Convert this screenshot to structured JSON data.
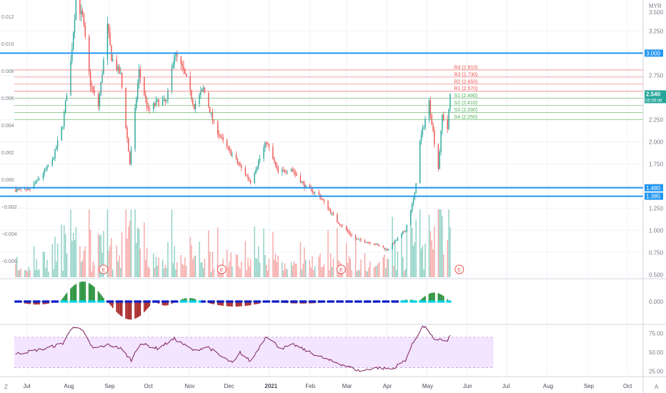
{
  "currency_label": "MYR",
  "overlay_left_axis": {
    "ticks": [
      0.012,
      0.01,
      0.008,
      0.006,
      0.004,
      0.002,
      0.0,
      -0.002,
      -0.004,
      -0.006
    ],
    "labels": [
      "0.012",
      "0.010",
      "0.008",
      "0.006",
      "0.004",
      "0.002",
      "0.000",
      "−0.002",
      "−0.004",
      "−0.006"
    ],
    "range": [
      -0.0072,
      0.0132
    ]
  },
  "chart_data": [
    {
      "type": "candlestick",
      "price_range": [
        0.47,
        3.6
      ],
      "price_ticks": [
        3.25,
        3.0,
        2.75,
        2.5,
        2.25,
        2.0,
        1.75,
        1.5,
        1.25,
        1.0,
        0.75,
        0.5
      ],
      "price_tick_labels": [
        "3.250",
        "3.000",
        "2.750",
        "2.500",
        "2.250",
        "2.000",
        "1.750",
        "1.500",
        "1.250",
        "1.000",
        "0.750",
        "0.500"
      ],
      "top_tick_label": "3.500",
      "anchors": [
        {
          "date": "2020-06-22",
          "close": 1.46
        },
        {
          "date": "2020-07-01",
          "close": 1.44
        },
        {
          "date": "2020-07-08",
          "close": 1.55
        },
        {
          "date": "2020-07-20",
          "close": 1.78
        },
        {
          "date": "2020-07-28",
          "close": 2.2
        },
        {
          "date": "2020-08-03",
          "close": 2.9
        },
        {
          "date": "2020-08-07",
          "close": 3.6
        },
        {
          "date": "2020-08-12",
          "close": 3.4
        },
        {
          "date": "2020-08-18",
          "close": 2.65
        },
        {
          "date": "2020-08-24",
          "close": 2.4
        },
        {
          "date": "2020-08-31",
          "close": 3.3
        },
        {
          "date": "2020-09-03",
          "close": 2.95
        },
        {
          "date": "2020-09-10",
          "close": 2.75
        },
        {
          "date": "2020-09-17",
          "close": 1.75
        },
        {
          "date": "2020-09-24",
          "close": 2.8
        },
        {
          "date": "2020-10-01",
          "close": 2.35
        },
        {
          "date": "2020-10-08",
          "close": 2.45
        },
        {
          "date": "2020-10-15",
          "close": 2.45
        },
        {
          "date": "2020-10-21",
          "close": 3.0
        },
        {
          "date": "2020-10-28",
          "close": 2.8
        },
        {
          "date": "2020-11-05",
          "close": 2.4
        },
        {
          "date": "2020-11-12",
          "close": 2.6
        },
        {
          "date": "2020-11-20",
          "close": 2.2
        },
        {
          "date": "2020-11-27",
          "close": 2.0
        },
        {
          "date": "2020-12-04",
          "close": 1.85
        },
        {
          "date": "2020-12-11",
          "close": 1.7
        },
        {
          "date": "2020-12-18",
          "close": 1.55
        },
        {
          "date": "2020-12-30",
          "close": 2.0
        },
        {
          "date": "2021-01-08",
          "close": 1.65
        },
        {
          "date": "2021-01-18",
          "close": 1.7
        },
        {
          "date": "2021-01-28",
          "close": 1.5
        },
        {
          "date": "2021-02-08",
          "close": 1.4
        },
        {
          "date": "2021-02-22",
          "close": 1.1
        },
        {
          "date": "2021-03-08",
          "close": 0.9
        },
        {
          "date": "2021-03-22",
          "close": 0.85
        },
        {
          "date": "2021-04-01",
          "close": 0.78
        },
        {
          "date": "2021-04-15",
          "close": 1.0
        },
        {
          "date": "2021-04-22",
          "close": 1.4
        },
        {
          "date": "2021-04-26",
          "close": 2.0
        },
        {
          "date": "2021-05-03",
          "close": 2.45
        },
        {
          "date": "2021-05-07",
          "close": 2.0
        },
        {
          "date": "2021-05-10",
          "close": 1.7
        },
        {
          "date": "2021-05-13",
          "close": 2.3
        },
        {
          "date": "2021-05-17",
          "close": 2.15
        },
        {
          "date": "2021-05-19",
          "close": 2.54
        }
      ],
      "last_date": "2021-05-19",
      "last_price_label": "2.540",
      "last_time_label": "05:09:08",
      "horizontal_lines": [
        {
          "value": 3.0,
          "label": "3.000"
        },
        {
          "value": 1.48,
          "label": "1.480"
        },
        {
          "value": 1.385,
          "label": "1.385"
        }
      ],
      "pivot_levels": [
        {
          "name": "R4 (2.810)",
          "value": 2.81,
          "kind": "resistance"
        },
        {
          "name": "R3 (2.730)",
          "value": 2.73,
          "kind": "resistance"
        },
        {
          "name": "R2 (2.650)",
          "value": 2.65,
          "kind": "resistance"
        },
        {
          "name": "R1 (2.570)",
          "value": 2.57,
          "kind": "resistance"
        },
        {
          "name": "S1 (2.490)",
          "value": 2.49,
          "kind": "support"
        },
        {
          "name": "S2 (2.410)",
          "value": 2.41,
          "kind": "support"
        },
        {
          "name": "S3 (2.330)",
          "value": 2.33,
          "kind": "support"
        },
        {
          "name": "S4 (2.250)",
          "value": 2.25,
          "kind": "support"
        }
      ],
      "earnings_markers": [
        {
          "date": "2020-08-28",
          "label": "E"
        },
        {
          "date": "2020-11-26",
          "label": "E"
        },
        {
          "date": "2021-02-25",
          "label": "E"
        },
        {
          "date": "2021-05-26",
          "label": "E"
        }
      ]
    },
    {
      "type": "histogram",
      "title": "",
      "zero_label": "0.000",
      "segments": [
        {
          "start": "2020-06-22",
          "end": "2020-07-25",
          "peak": -0.15
        },
        {
          "start": "2020-07-26",
          "end": "2020-08-30",
          "peak": 1.0
        },
        {
          "start": "2020-08-31",
          "end": "2020-10-05",
          "peak": -0.9
        },
        {
          "start": "2020-10-06",
          "end": "2020-10-22",
          "peak": -0.2
        },
        {
          "start": "2020-10-23",
          "end": "2020-11-10",
          "peak": 0.18
        },
        {
          "start": "2020-11-11",
          "end": "2020-12-31",
          "peak": -0.25
        },
        {
          "start": "2021-01-01",
          "end": "2021-02-20",
          "peak": -0.1
        },
        {
          "start": "2021-02-21",
          "end": "2021-04-10",
          "peak": -0.06
        },
        {
          "start": "2021-04-11",
          "end": "2021-04-24",
          "peak": 0.1
        },
        {
          "start": "2021-04-25",
          "end": "2021-05-19",
          "peak": 0.45
        }
      ]
    },
    {
      "type": "line",
      "title": "",
      "ylim": [
        20,
        85
      ],
      "band": [
        30,
        70
      ],
      "ticks": [
        75,
        50,
        25
      ],
      "tick_labels": [
        "75.00",
        "50.00",
        "25.00"
      ],
      "anchors": [
        {
          "date": "2020-06-22",
          "value": 48
        },
        {
          "date": "2020-07-05",
          "value": 52
        },
        {
          "date": "2020-07-15",
          "value": 55
        },
        {
          "date": "2020-07-28",
          "value": 62
        },
        {
          "date": "2020-08-05",
          "value": 85
        },
        {
          "date": "2020-08-12",
          "value": 78
        },
        {
          "date": "2020-08-20",
          "value": 55
        },
        {
          "date": "2020-09-01",
          "value": 60
        },
        {
          "date": "2020-09-10",
          "value": 55
        },
        {
          "date": "2020-09-18",
          "value": 40
        },
        {
          "date": "2020-09-25",
          "value": 62
        },
        {
          "date": "2020-10-08",
          "value": 55
        },
        {
          "date": "2020-10-21",
          "value": 68
        },
        {
          "date": "2020-11-05",
          "value": 52
        },
        {
          "date": "2020-11-15",
          "value": 58
        },
        {
          "date": "2020-11-25",
          "value": 45
        },
        {
          "date": "2020-12-05",
          "value": 35
        },
        {
          "date": "2020-12-10",
          "value": 50
        },
        {
          "date": "2020-12-18",
          "value": 38
        },
        {
          "date": "2020-12-30",
          "value": 72
        },
        {
          "date": "2021-01-10",
          "value": 55
        },
        {
          "date": "2021-01-20",
          "value": 60
        },
        {
          "date": "2021-02-01",
          "value": 50
        },
        {
          "date": "2021-02-15",
          "value": 40
        },
        {
          "date": "2021-03-01",
          "value": 32
        },
        {
          "date": "2021-03-12",
          "value": 25
        },
        {
          "date": "2021-03-22",
          "value": 30
        },
        {
          "date": "2021-04-05",
          "value": 28
        },
        {
          "date": "2021-04-15",
          "value": 40
        },
        {
          "date": "2021-04-20",
          "value": 60
        },
        {
          "date": "2021-04-28",
          "value": 85
        },
        {
          "date": "2021-05-03",
          "value": 78
        },
        {
          "date": "2021-05-08",
          "value": 62
        },
        {
          "date": "2021-05-12",
          "value": 68
        },
        {
          "date": "2021-05-16",
          "value": 63
        },
        {
          "date": "2021-05-19",
          "value": 72
        }
      ]
    }
  ],
  "time_axis": {
    "range": [
      "2020-06-21",
      "2021-10-13"
    ],
    "ticks": [
      {
        "date": "2020-07-01",
        "label": "Jul"
      },
      {
        "date": "2020-08-01",
        "label": "Aug"
      },
      {
        "date": "2020-09-01",
        "label": "Sep"
      },
      {
        "date": "2020-10-01",
        "label": "Oct"
      },
      {
        "date": "2020-11-01",
        "label": "Nov"
      },
      {
        "date": "2020-12-01",
        "label": "Dec"
      },
      {
        "date": "2021-01-01",
        "label": "2021"
      },
      {
        "date": "2021-02-01",
        "label": "Feb"
      },
      {
        "date": "2021-03-01",
        "label": "Mar"
      },
      {
        "date": "2021-04-01",
        "label": "Apr"
      },
      {
        "date": "2021-05-01",
        "label": "May"
      },
      {
        "date": "2021-06-01",
        "label": "Jun"
      },
      {
        "date": "2021-07-01",
        "label": "Jul"
      },
      {
        "date": "2021-08-01",
        "label": "Aug"
      },
      {
        "date": "2021-09-01",
        "label": "Sep"
      },
      {
        "date": "2021-10-01",
        "label": "Oct"
      }
    ]
  },
  "corner_buttons": {
    "left": "Z",
    "right": "A"
  },
  "colors": {
    "up": "#26a69a",
    "down": "#ef5350",
    "level_line": "#2196f3",
    "resistance": "#ef5350",
    "support": "#4caf50",
    "rsi_line": "#7e1f5f",
    "rsi_band": "#f3e5ff",
    "hist_up": "#1b8a2e",
    "hist_down": "#a31919",
    "zero_dot_cyan": "#00d2e6",
    "zero_dot_blue": "#1020c8"
  }
}
